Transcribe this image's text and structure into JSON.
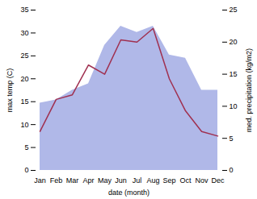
{
  "chart_data": {
    "type": "line",
    "xlabel": "date (month)",
    "ylabel": "max temp (C)",
    "y2label": "med. precipitation (kg/m2)",
    "categories": [
      "Jan",
      "Feb",
      "Mar",
      "Apr",
      "May",
      "Jun",
      "Jul",
      "Aug",
      "Sep",
      "Oct",
      "Nov",
      "Dec"
    ],
    "series": [
      {
        "type": "area",
        "axis": "y2",
        "color": "#b0b8e8",
        "values": [
          10.5,
          11.0,
          12.5,
          13.5,
          19.5,
          22.5,
          21.5,
          22.5,
          18.0,
          17.5,
          12.5,
          12.5
        ]
      },
      {
        "type": "line",
        "color": "#a03050",
        "values": [
          8.5,
          15.5,
          16.5,
          23.0,
          21.0,
          28.5,
          28.0,
          31.0,
          20.0,
          13.0,
          8.5,
          7.5
        ]
      }
    ],
    "ylim": [
      0,
      35
    ],
    "yticks": [
      0,
      5,
      10,
      15,
      20,
      25,
      30,
      35
    ],
    "y2lim": [
      0,
      25
    ],
    "y2ticks": [
      0,
      5,
      10,
      15,
      20,
      25
    ]
  }
}
